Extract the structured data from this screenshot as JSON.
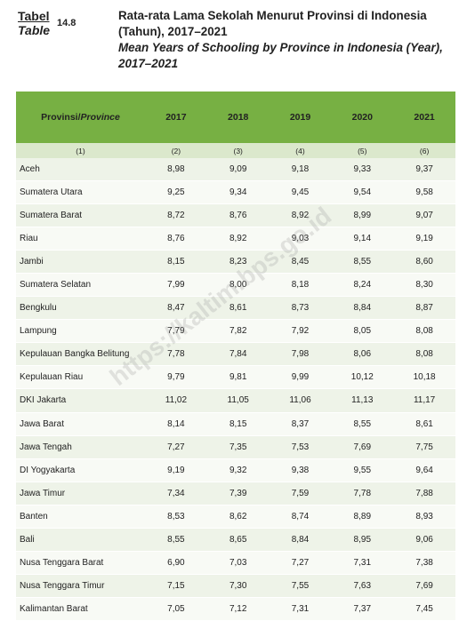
{
  "header": {
    "label_id": "Tabel",
    "label_en": "Table",
    "number": "14.8",
    "title_id": "Rata-rata Lama Sekolah Menurut Provinsi di Indonesia (Tahun), 2017–2021",
    "title_en": "Mean Years of Schooling by Province in Indonesia (Year), 2017–2021"
  },
  "watermark": "https://kaltim.bps.go.id",
  "table": {
    "province_id": "Provinsi/",
    "province_en": "Province",
    "years": [
      "2017",
      "2018",
      "2019",
      "2020",
      "2021"
    ],
    "column_numbers": [
      "(1)",
      "(2)",
      "(3)",
      "(4)",
      "(5)",
      "(6)"
    ],
    "rows": [
      [
        "Aceh",
        "8,98",
        "9,09",
        "9,18",
        "9,33",
        "9,37"
      ],
      [
        "Sumatera Utara",
        "9,25",
        "9,34",
        "9,45",
        "9,54",
        "9,58"
      ],
      [
        "Sumatera Barat",
        "8,72",
        "8,76",
        "8,92",
        "8,99",
        "9,07"
      ],
      [
        "Riau",
        "8,76",
        "8,92",
        "9,03",
        "9,14",
        "9,19"
      ],
      [
        "Jambi",
        "8,15",
        "8,23",
        "8,45",
        "8,55",
        "8,60"
      ],
      [
        "Sumatera Selatan",
        "7,99",
        "8,00",
        "8,18",
        "8,24",
        "8,30"
      ],
      [
        "Bengkulu",
        "8,47",
        "8,61",
        "8,73",
        "8,84",
        "8,87"
      ],
      [
        "Lampung",
        "7,79",
        "7,82",
        "7,92",
        "8,05",
        "8,08"
      ],
      [
        "Kepulauan Bangka Belitung",
        "7,78",
        "7,84",
        "7,98",
        "8,06",
        "8,08"
      ],
      [
        "Kepulauan Riau",
        "9,79",
        "9,81",
        "9,99",
        "10,12",
        "10,18"
      ],
      [
        "DKI Jakarta",
        "11,02",
        "11,05",
        "11,06",
        "11,13",
        "11,17"
      ],
      [
        "Jawa Barat",
        "8,14",
        "8,15",
        "8,37",
        "8,55",
        "8,61"
      ],
      [
        "Jawa Tengah",
        "7,27",
        "7,35",
        "7,53",
        "7,69",
        "7,75"
      ],
      [
        "DI Yogyakarta",
        "9,19",
        "9,32",
        "9,38",
        "9,55",
        "9,64"
      ],
      [
        "Jawa Timur",
        "7,34",
        "7,39",
        "7,59",
        "7,78",
        "7,88"
      ],
      [
        "Banten",
        "8,53",
        "8,62",
        "8,74",
        "8,89",
        "8,93"
      ],
      [
        "Bali",
        "8,55",
        "8,65",
        "8,84",
        "8,95",
        "9,06"
      ],
      [
        "Nusa Tenggara Barat",
        "6,90",
        "7,03",
        "7,27",
        "7,31",
        "7,38"
      ],
      [
        "Nusa Tenggara Timur",
        "7,15",
        "7,30",
        "7,55",
        "7,63",
        "7,69"
      ],
      [
        "Kalimantan Barat",
        "7,05",
        "7,12",
        "7,31",
        "7,37",
        "7,45"
      ]
    ]
  }
}
